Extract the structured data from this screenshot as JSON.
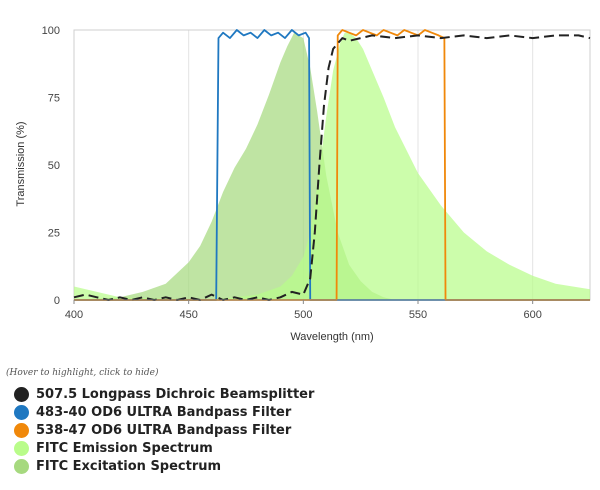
{
  "chart_data": {
    "type": "area",
    "xlabel": "Wavelength (nm)",
    "ylabel": "Transmission (%)",
    "xlim": [
      400,
      625
    ],
    "ylim": [
      0,
      100
    ],
    "xticks": [
      400,
      450,
      500,
      550,
      600
    ],
    "yticks": [
      0,
      25,
      50,
      75,
      100
    ],
    "grid": "vertical",
    "legend_position": "bottom-left",
    "series": [
      {
        "name": "FITC Excitation Spectrum",
        "kind": "area",
        "color": "#a6d97f",
        "x": [
          400,
          410,
          420,
          430,
          440,
          450,
          455,
          460,
          465,
          470,
          475,
          480,
          485,
          490,
          493,
          496,
          500,
          503,
          506,
          510,
          515,
          520,
          525,
          530,
          535,
          540
        ],
        "y": [
          0,
          0.5,
          1,
          3,
          6,
          14,
          20,
          29,
          40,
          49,
          56,
          65,
          76,
          88,
          94,
          99,
          97,
          86,
          70,
          46,
          25,
          13,
          7,
          3,
          1,
          0
        ]
      },
      {
        "name": "FITC Emission Spectrum",
        "kind": "area",
        "color": "#b9fc8a",
        "x": [
          400,
          420,
          440,
          460,
          470,
          480,
          490,
          495,
          500,
          503,
          506,
          510,
          513,
          516,
          518,
          520,
          523,
          526,
          530,
          535,
          540,
          550,
          560,
          570,
          580,
          590,
          600,
          610,
          625
        ],
        "y": [
          5,
          1,
          0.5,
          0.3,
          1,
          2,
          5,
          9,
          16,
          25,
          42,
          68,
          85,
          95,
          99,
          99,
          97,
          93,
          85,
          75,
          64,
          47,
          35,
          25,
          18,
          13,
          9,
          6,
          4
        ]
      },
      {
        "name": "483-40 OD6 ULTRA Bandpass Filter",
        "kind": "line",
        "color": "#1f78c1",
        "x": [
          400,
          462,
          463,
          465,
          468,
          471,
          474,
          477,
          480,
          483,
          486,
          489,
          492,
          495,
          498,
          501,
          502.5,
          503,
          503.5,
          625
        ],
        "y": [
          0,
          0,
          97,
          99,
          97,
          100,
          98,
          99,
          97,
          100,
          98,
          99,
          97,
          100,
          98,
          99,
          97,
          0,
          0,
          0
        ]
      },
      {
        "name": "538-47 OD6 ULTRA Bandpass Filter",
        "kind": "line",
        "color": "#f0880a",
        "x": [
          400,
          514.5,
          515,
          517,
          520,
          523,
          526,
          529,
          532,
          535,
          538,
          541,
          544,
          547,
          550,
          553,
          556,
          559,
          561.5,
          562,
          625
        ],
        "y": [
          0,
          0,
          98,
          100,
          99,
          98,
          100,
          99,
          98,
          100,
          99,
          98,
          100,
          99,
          98,
          100,
          99,
          98,
          97,
          0,
          0
        ]
      },
      {
        "name": "507.5 Longpass Dichroic Beamsplitter",
        "kind": "line",
        "dash": true,
        "color": "#222222",
        "x": [
          400,
          405,
          410,
          415,
          420,
          425,
          430,
          435,
          440,
          445,
          450,
          455,
          460,
          465,
          470,
          475,
          480,
          485,
          490,
          495,
          500,
          503,
          505,
          507,
          509,
          511,
          513,
          515,
          517,
          520,
          525,
          530,
          540,
          550,
          560,
          570,
          580,
          590,
          600,
          610,
          620,
          625
        ],
        "y": [
          1,
          2,
          1,
          0,
          1,
          0,
          1,
          0,
          1,
          0,
          1,
          0,
          2,
          0,
          1,
          0,
          1,
          0,
          1,
          3,
          2,
          8,
          25,
          50,
          72,
          86,
          93,
          95,
          97,
          96,
          97,
          98,
          97,
          98,
          97,
          98,
          97,
          98,
          97,
          98,
          98,
          97
        ]
      }
    ]
  },
  "hint": "(Hover to highlight, click to hide)",
  "legend": [
    {
      "label": "507.5 Longpass Dichroic Beamsplitter",
      "color": "#222222"
    },
    {
      "label": "483-40 OD6 ULTRA Bandpass Filter",
      "color": "#1f78c1"
    },
    {
      "label": "538-47 OD6 ULTRA Bandpass Filter",
      "color": "#f0880a"
    },
    {
      "label": "FITC Emission Spectrum",
      "color": "#b9fc8a"
    },
    {
      "label": "FITC Excitation Spectrum",
      "color": "#a6d97f"
    }
  ]
}
